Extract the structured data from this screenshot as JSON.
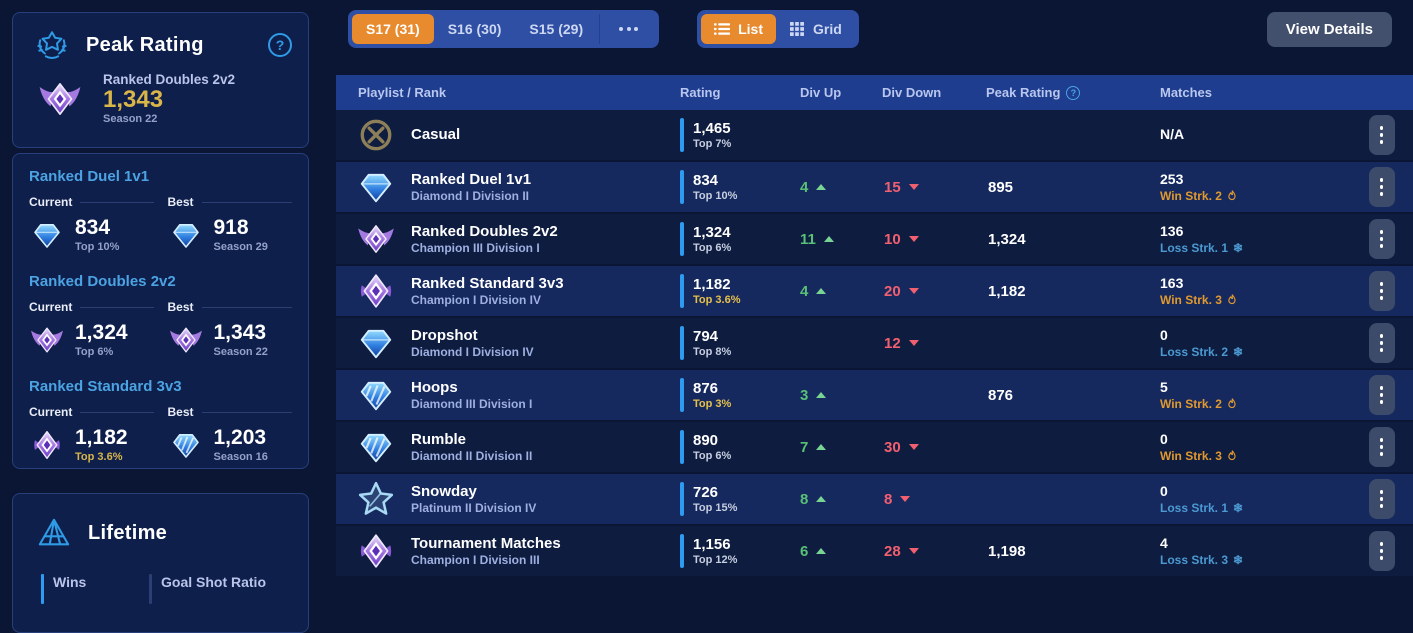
{
  "help_glyph": "?",
  "colors": {
    "accent_orange": "#e78b2e",
    "header_blue": "#1e3d8e",
    "gold": "#d9b64a",
    "div_up_green": "#58c077",
    "div_down_red": "#f25f6f",
    "win_streak_orange": "#e0992e",
    "loss_streak_blue": "#4b9ad2",
    "rating_bar_blue": "#2f9bf0",
    "page_bg": "#0a1633",
    "card_bg": "#0f1f4b"
  },
  "sidebar": {
    "peak_card": {
      "icon": "laurel-star",
      "title": "Peak Rating",
      "rank_icon": "champion-wings",
      "playlist": "Ranked Doubles 2v2",
      "value": "1,343",
      "season": "Season 22"
    },
    "labels": {
      "current": "Current",
      "best": "Best"
    },
    "playlists": [
      {
        "title": "Ranked Duel 1v1",
        "current": {
          "icon": "diamond",
          "value": "834",
          "sub": "Top 10%",
          "gold": false
        },
        "best": {
          "icon": "diamond",
          "value": "918",
          "sub": "Season 29"
        }
      },
      {
        "title": "Ranked Doubles 2v2",
        "current": {
          "icon": "champion-wings",
          "value": "1,324",
          "sub": "Top 6%",
          "gold": false
        },
        "best": {
          "icon": "champion-wings",
          "value": "1,343",
          "sub": "Season 22"
        }
      },
      {
        "title": "Ranked Standard 3v3",
        "current": {
          "icon": "champion",
          "value": "1,182",
          "sub": "Top 3.6%",
          "gold": true
        },
        "best": {
          "icon": "diamond-striped",
          "value": "1,203",
          "sub": "Season 16"
        }
      }
    ],
    "lifetime": {
      "icon": "pyramid",
      "title": "Lifetime",
      "stats": [
        "Wins",
        "Goal Shot Ratio"
      ]
    }
  },
  "toolbar": {
    "seasons": [
      {
        "label": "S17 (31)",
        "active": true
      },
      {
        "label": "S16 (30)",
        "active": false
      },
      {
        "label": "S15 (29)",
        "active": false
      }
    ],
    "more_icon": "ellipsis",
    "views": [
      {
        "label": "List",
        "icon": "list",
        "active": true
      },
      {
        "label": "Grid",
        "icon": "grid",
        "active": false
      }
    ],
    "view_details": "View Details"
  },
  "table": {
    "headers": [
      "Playlist / Rank",
      "Rating",
      "Div Up",
      "Div Down",
      "Peak Rating",
      "Matches"
    ],
    "row_menu_icon": "kebab-menu",
    "rows": [
      {
        "icon": "casual",
        "name": "Casual",
        "rank": "",
        "rating": "1,465",
        "top": "Top 7%",
        "top_gold": false,
        "div_up": "",
        "div_down": "",
        "peak": "",
        "matches": "N/A",
        "streak": "",
        "streak_type": ""
      },
      {
        "icon": "diamond",
        "name": "Ranked Duel 1v1",
        "rank": "Diamond I Division II",
        "rating": "834",
        "top": "Top 10%",
        "top_gold": false,
        "div_up": "4",
        "div_down": "15",
        "peak": "895",
        "matches": "253",
        "streak": "Win Strk. 2",
        "streak_type": "win"
      },
      {
        "icon": "champion-wings",
        "name": "Ranked Doubles 2v2",
        "rank": "Champion III Division I",
        "rating": "1,324",
        "top": "Top 6%",
        "top_gold": false,
        "div_up": "11",
        "div_down": "10",
        "peak": "1,324",
        "matches": "136",
        "streak": "Loss Strk. 1",
        "streak_type": "loss"
      },
      {
        "icon": "champion",
        "name": "Ranked Standard 3v3",
        "rank": "Champion I Division IV",
        "rating": "1,182",
        "top": "Top 3.6%",
        "top_gold": true,
        "div_up": "4",
        "div_down": "20",
        "peak": "1,182",
        "matches": "163",
        "streak": "Win Strk. 3",
        "streak_type": "win"
      },
      {
        "icon": "diamond",
        "name": "Dropshot",
        "rank": "Diamond I Division IV",
        "rating": "794",
        "top": "Top 8%",
        "top_gold": false,
        "div_up": "",
        "div_down": "12",
        "peak": "",
        "matches": "0",
        "streak": "Loss Strk. 2",
        "streak_type": "loss"
      },
      {
        "icon": "diamond-striped",
        "name": "Hoops",
        "rank": "Diamond III Division I",
        "rating": "876",
        "top": "Top 3%",
        "top_gold": true,
        "div_up": "3",
        "div_down": "",
        "peak": "876",
        "matches": "5",
        "streak": "Win Strk. 2",
        "streak_type": "win"
      },
      {
        "icon": "diamond-striped",
        "name": "Rumble",
        "rank": "Diamond II Division II",
        "rating": "890",
        "top": "Top 6%",
        "top_gold": false,
        "div_up": "7",
        "div_down": "30",
        "peak": "",
        "matches": "0",
        "streak": "Win Strk. 3",
        "streak_type": "win"
      },
      {
        "icon": "platinum-star",
        "name": "Snowday",
        "rank": "Platinum II Division IV",
        "rating": "726",
        "top": "Top 15%",
        "top_gold": false,
        "div_up": "8",
        "div_down": "8",
        "peak": "",
        "matches": "0",
        "streak": "Loss Strk. 1",
        "streak_type": "loss"
      },
      {
        "icon": "champion",
        "name": "Tournament Matches",
        "rank": "Champion I Division III",
        "rating": "1,156",
        "top": "Top 12%",
        "top_gold": false,
        "div_up": "6",
        "div_down": "28",
        "peak": "1,198",
        "matches": "4",
        "streak": "Loss Strk. 3",
        "streak_type": "loss"
      }
    ]
  }
}
